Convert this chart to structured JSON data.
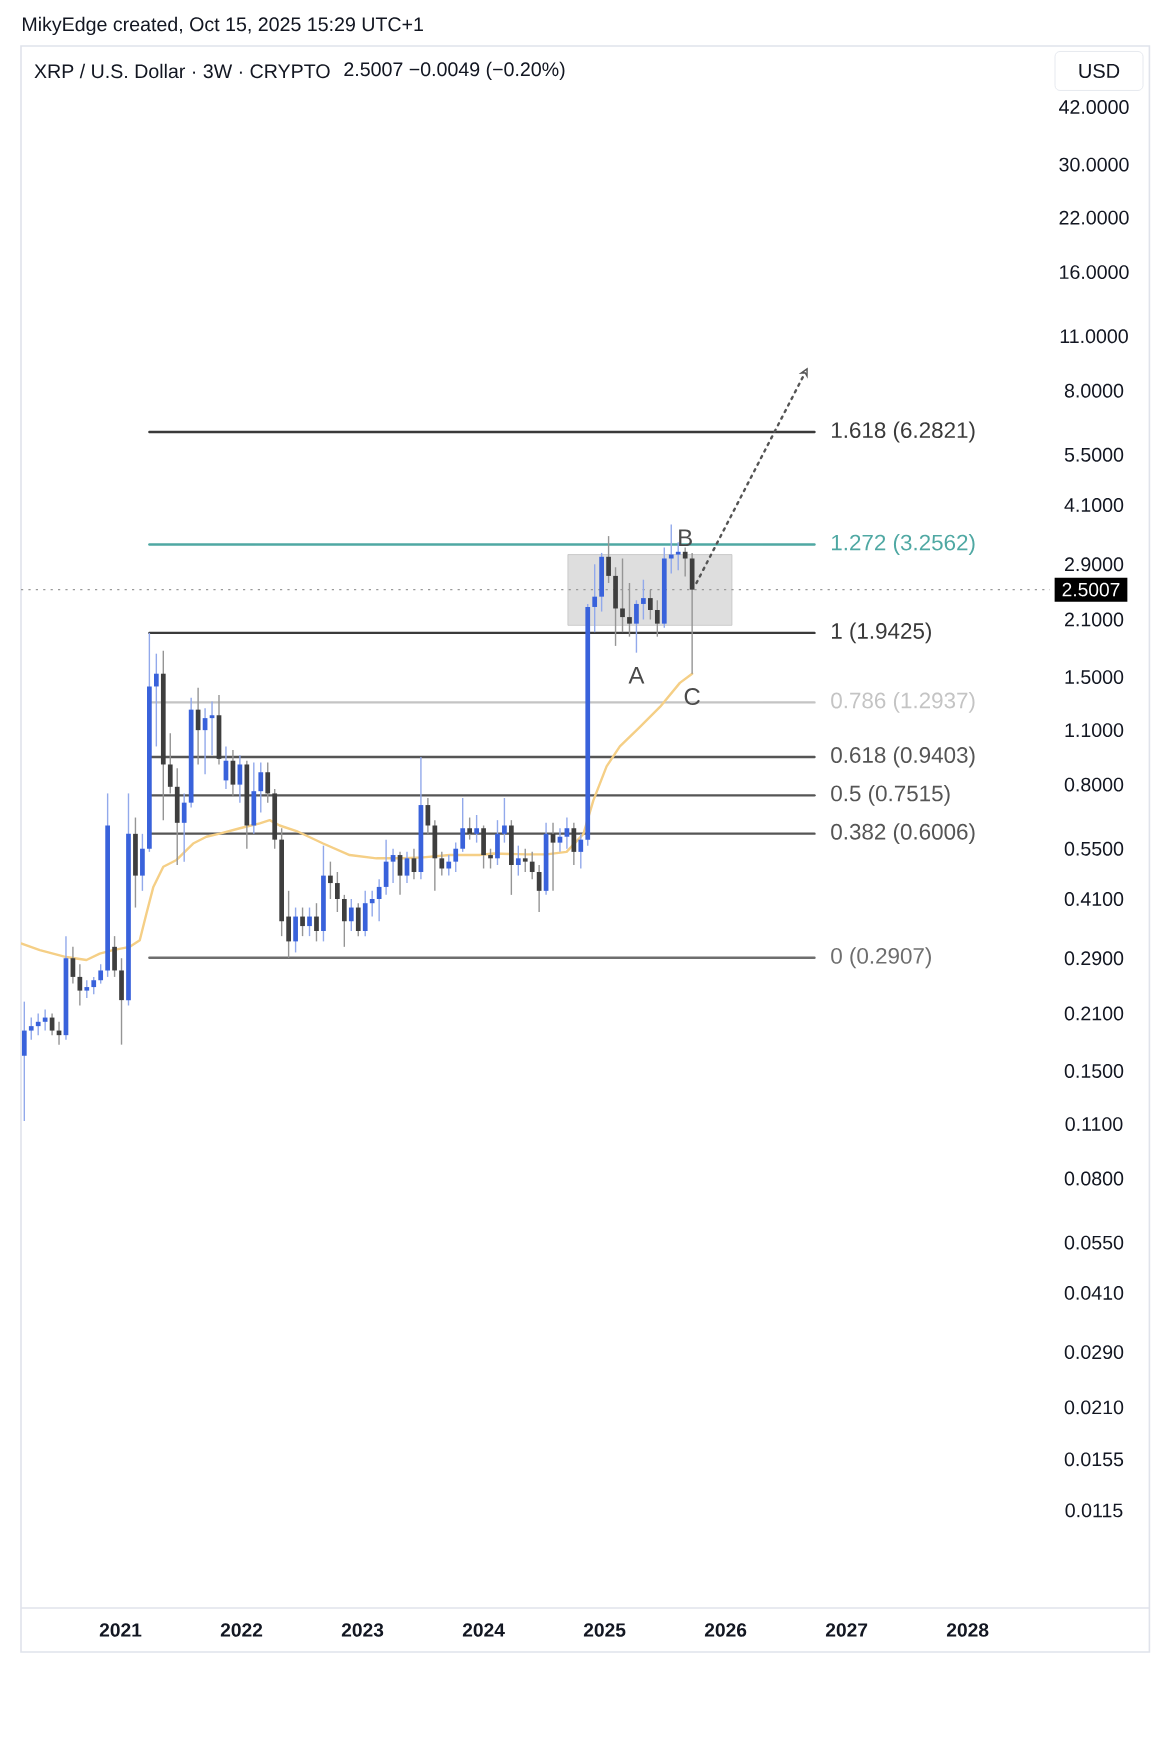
{
  "chart_data": {
    "type": "candlestick",
    "title": "XRP / U.S. Dollar · 3W · CRYPTO",
    "subtitle": "2.5007  −0.0049 (−0.20%)",
    "ylabel": "USD",
    "x": [
      "2020-03-16",
      "2020-04-06",
      "2020-04-27",
      "2020-05-18",
      "2020-06-08",
      "2020-06-29",
      "2020-07-20",
      "2020-08-10",
      "2020-08-31",
      "2020-09-21",
      "2020-10-12",
      "2020-11-02",
      "2020-11-23",
      "2020-12-14",
      "2021-01-04",
      "2021-01-25",
      "2021-02-15",
      "2021-03-08",
      "2021-03-29",
      "2021-04-19",
      "2021-05-10",
      "2021-05-31",
      "2021-06-21",
      "2021-07-12",
      "2021-08-02",
      "2021-08-23",
      "2021-09-13",
      "2021-10-04",
      "2021-10-25",
      "2021-11-15",
      "2021-12-06",
      "2021-12-27",
      "2022-01-17",
      "2022-02-07",
      "2022-02-28",
      "2022-03-21",
      "2022-04-11",
      "2022-05-02",
      "2022-05-23",
      "2022-06-13",
      "2022-07-04",
      "2022-07-25",
      "2022-08-15",
      "2022-09-05",
      "2022-09-26",
      "2022-10-17",
      "2022-11-07",
      "2022-11-28",
      "2022-12-19",
      "2023-01-09",
      "2023-01-30",
      "2023-02-20",
      "2023-03-13",
      "2023-04-03",
      "2023-04-24",
      "2023-05-15",
      "2023-06-05",
      "2023-06-26",
      "2023-07-17",
      "2023-08-07",
      "2023-08-28",
      "2023-09-18",
      "2023-10-09",
      "2023-10-30",
      "2023-11-20",
      "2023-12-11",
      "2024-01-01",
      "2024-01-22",
      "2024-02-12",
      "2024-03-04",
      "2024-03-25",
      "2024-04-15",
      "2024-05-06",
      "2024-05-27",
      "2024-06-17",
      "2024-07-08",
      "2024-07-29",
      "2024-08-19",
      "2024-09-09",
      "2024-09-30",
      "2024-10-21",
      "2024-11-11",
      "2024-12-02",
      "2024-12-23",
      "2025-01-13",
      "2025-02-03",
      "2025-02-24",
      "2025-03-17",
      "2025-04-07",
      "2025-04-28",
      "2025-05-19",
      "2025-06-09",
      "2025-06-30",
      "2025-07-21",
      "2025-08-11",
      "2025-09-01",
      "2025-09-22"
    ],
    "ohlc": [
      [
        0.164,
        0.225,
        0.112,
        0.19
      ],
      [
        0.19,
        0.205,
        0.18,
        0.195
      ],
      [
        0.195,
        0.21,
        0.185,
        0.2
      ],
      [
        0.2,
        0.215,
        0.19,
        0.205
      ],
      [
        0.205,
        0.21,
        0.185,
        0.19
      ],
      [
        0.19,
        0.2,
        0.175,
        0.185
      ],
      [
        0.185,
        0.33,
        0.18,
        0.29
      ],
      [
        0.29,
        0.31,
        0.25,
        0.26
      ],
      [
        0.26,
        0.28,
        0.22,
        0.24
      ],
      [
        0.24,
        0.255,
        0.23,
        0.245
      ],
      [
        0.245,
        0.26,
        0.235,
        0.255
      ],
      [
        0.255,
        0.28,
        0.25,
        0.27
      ],
      [
        0.27,
        0.76,
        0.26,
        0.63
      ],
      [
        0.31,
        0.33,
        0.26,
        0.27
      ],
      [
        0.27,
        0.29,
        0.175,
        0.227
      ],
      [
        0.227,
        0.76,
        0.22,
        0.6
      ],
      [
        0.6,
        0.66,
        0.39,
        0.47
      ],
      [
        0.47,
        0.6,
        0.43,
        0.55
      ],
      [
        0.55,
        1.9425,
        0.54,
        1.42
      ],
      [
        1.42,
        1.72,
        1.0,
        1.53
      ],
      [
        1.53,
        1.75,
        0.65,
        0.9
      ],
      [
        0.9,
        1.08,
        0.76,
        0.79
      ],
      [
        0.79,
        0.88,
        0.5,
        0.64
      ],
      [
        0.64,
        0.76,
        0.51,
        0.72
      ],
      [
        0.72,
        1.33,
        0.7,
        1.24
      ],
      [
        1.24,
        1.41,
        0.9,
        1.1
      ],
      [
        1.1,
        1.25,
        0.85,
        1.18
      ],
      [
        1.18,
        1.3,
        0.95,
        1.2
      ],
      [
        1.2,
        1.35,
        0.9,
        0.93
      ],
      [
        0.82,
        1.0,
        0.78,
        0.92
      ],
      [
        0.92,
        0.98,
        0.75,
        0.8
      ],
      [
        0.8,
        0.95,
        0.72,
        0.9
      ],
      [
        0.9,
        0.92,
        0.55,
        0.63
      ],
      [
        0.63,
        0.91,
        0.6,
        0.77
      ],
      [
        0.77,
        0.91,
        0.68,
        0.86
      ],
      [
        0.86,
        0.91,
        0.72,
        0.76
      ],
      [
        0.76,
        0.78,
        0.55,
        0.58
      ],
      [
        0.58,
        0.62,
        0.33,
        0.36
      ],
      [
        0.37,
        0.43,
        0.2907,
        0.32
      ],
      [
        0.32,
        0.39,
        0.3,
        0.37
      ],
      [
        0.37,
        0.39,
        0.33,
        0.35
      ],
      [
        0.35,
        0.39,
        0.33,
        0.37
      ],
      [
        0.37,
        0.4,
        0.32,
        0.34
      ],
      [
        0.34,
        0.56,
        0.32,
        0.47
      ],
      [
        0.47,
        0.51,
        0.41,
        0.45
      ],
      [
        0.45,
        0.48,
        0.38,
        0.41
      ],
      [
        0.41,
        0.42,
        0.31,
        0.36
      ],
      [
        0.36,
        0.41,
        0.34,
        0.39
      ],
      [
        0.39,
        0.4,
        0.33,
        0.34
      ],
      [
        0.34,
        0.43,
        0.33,
        0.4
      ],
      [
        0.4,
        0.43,
        0.37,
        0.41
      ],
      [
        0.41,
        0.46,
        0.36,
        0.44
      ],
      [
        0.44,
        0.58,
        0.42,
        0.51
      ],
      [
        0.51,
        0.55,
        0.45,
        0.53
      ],
      [
        0.53,
        0.54,
        0.42,
        0.47
      ],
      [
        0.47,
        0.54,
        0.45,
        0.52
      ],
      [
        0.52,
        0.55,
        0.46,
        0.48
      ],
      [
        0.48,
        0.94,
        0.46,
        0.71
      ],
      [
        0.71,
        0.74,
        0.6,
        0.63
      ],
      [
        0.63,
        0.65,
        0.43,
        0.52
      ],
      [
        0.52,
        0.54,
        0.47,
        0.49
      ],
      [
        0.49,
        0.53,
        0.47,
        0.51
      ],
      [
        0.51,
        0.57,
        0.48,
        0.55
      ],
      [
        0.55,
        0.74,
        0.54,
        0.62
      ],
      [
        0.62,
        0.66,
        0.58,
        0.6
      ],
      [
        0.6,
        0.67,
        0.57,
        0.62
      ],
      [
        0.62,
        0.63,
        0.49,
        0.53
      ],
      [
        0.53,
        0.55,
        0.49,
        0.52
      ],
      [
        0.52,
        0.65,
        0.5,
        0.6
      ],
      [
        0.6,
        0.74,
        0.57,
        0.63
      ],
      [
        0.63,
        0.65,
        0.42,
        0.5
      ],
      [
        0.5,
        0.56,
        0.47,
        0.52
      ],
      [
        0.52,
        0.55,
        0.48,
        0.51
      ],
      [
        0.51,
        0.54,
        0.46,
        0.48
      ],
      [
        0.48,
        0.5,
        0.38,
        0.43
      ],
      [
        0.43,
        0.64,
        0.42,
        0.6
      ],
      [
        0.6,
        0.64,
        0.43,
        0.57
      ],
      [
        0.57,
        0.62,
        0.54,
        0.59
      ],
      [
        0.59,
        0.66,
        0.55,
        0.62
      ],
      [
        0.62,
        0.64,
        0.5,
        0.54
      ],
      [
        0.54,
        0.6,
        0.49,
        0.58
      ],
      [
        0.58,
        2.3,
        0.56,
        2.26
      ],
      [
        2.26,
        2.9,
        1.95,
        2.4
      ],
      [
        2.4,
        3.1,
        2.2,
        3.03
      ],
      [
        3.03,
        3.42,
        2.6,
        2.71
      ],
      [
        2.71,
        2.85,
        1.8,
        2.24
      ],
      [
        2.24,
        3.0,
        1.95,
        2.13
      ],
      [
        2.13,
        2.6,
        1.9,
        2.05
      ],
      [
        2.05,
        2.35,
        1.73,
        2.3
      ],
      [
        2.3,
        2.65,
        2.1,
        2.38
      ],
      [
        2.38,
        2.5,
        2.1,
        2.22
      ],
      [
        2.22,
        2.35,
        1.9,
        2.05
      ],
      [
        2.05,
        3.2,
        2.0,
        3.0
      ],
      [
        3.0,
        3.66,
        2.75,
        3.07
      ],
      [
        3.07,
        3.3,
        2.8,
        3.12
      ],
      [
        3.12,
        3.2,
        2.7,
        3.0
      ],
      [
        3.0,
        3.1,
        1.53,
        2.5007
      ]
    ],
    "colors": [
      "#3962db",
      "#3962db",
      "#3962db",
      "#3962db",
      "#3e3e3e",
      "#3e3e3e",
      "#3962db",
      "#3e3e3e",
      "#3e3e3e",
      "#3962db",
      "#3962db",
      "#3962db",
      "#3962db",
      "#3e3e3e",
      "#3e3e3e",
      "#3962db",
      "#3e3e3e",
      "#3962db",
      "#3962db",
      "#3962db",
      "#3e3e3e",
      "#3e3e3e",
      "#3e3e3e",
      "#3962db",
      "#3962db",
      "#3e3e3e",
      "#3962db",
      "#3962db",
      "#3e3e3e",
      "#3962db",
      "#3e3e3e",
      "#3962db",
      "#3e3e3e",
      "#3962db",
      "#3962db",
      "#3e3e3e",
      "#3e3e3e",
      "#3e3e3e",
      "#3e3e3e",
      "#3962db",
      "#3e3e3e",
      "#3962db",
      "#3e3e3e",
      "#3962db",
      "#3e3e3e",
      "#3e3e3e",
      "#3e3e3e",
      "#3962db",
      "#3e3e3e",
      "#3962db",
      "#3962db",
      "#3962db",
      "#3962db",
      "#3962db",
      "#3e3e3e",
      "#3962db",
      "#3e3e3e",
      "#3962db",
      "#3e3e3e",
      "#3e3e3e",
      "#3e3e3e",
      "#3962db",
      "#3962db",
      "#3962db",
      "#3e3e3e",
      "#3962db",
      "#3e3e3e",
      "#3e3e3e",
      "#3962db",
      "#3962db",
      "#3e3e3e",
      "#3962db",
      "#3e3e3e",
      "#3e3e3e",
      "#3e3e3e",
      "#3962db",
      "#3e3e3e",
      "#3962db",
      "#3962db",
      "#3e3e3e",
      "#3962db",
      "#3962db",
      "#3962db",
      "#3962db",
      "#3e3e3e",
      "#3e3e3e",
      "#3e3e3e",
      "#3e3e3e",
      "#3962db",
      "#3962db",
      "#3e3e3e",
      "#3e3e3e",
      "#3962db",
      "#3962db",
      "#3962db",
      "#3e3e3e",
      "#3e3e3e"
    ],
    "series": [
      {
        "type": "line",
        "color": "#dedede",
        "x": [
          "2024-09-12",
          "2026-01-20"
        ],
        "values": [
          null,
          null
        ],
        "lower": [
          2.03,
          2.03
        ],
        "upper": [
          3.07,
          3.07
        ]
      },
      {
        "type": "line",
        "name": "1.618 (6.2821)",
        "color": "#3a3a3a",
        "x": [
          "2021-03-29",
          "2026-09-26"
        ],
        "values": [
          6.2821,
          6.2821
        ]
      },
      {
        "type": "line",
        "name": "1.272 (3.2562)",
        "color": "#4fa8a3",
        "x": [
          "2021-03-29",
          "2026-09-26"
        ],
        "values": [
          3.2562,
          3.2562
        ]
      },
      {
        "type": "line",
        "name": "1 (1.9425)",
        "color": "#3a3a3a",
        "x": [
          "2021-03-29",
          "2026-09-26"
        ],
        "values": [
          1.9425,
          1.9425
        ]
      },
      {
        "type": "line",
        "name": "0.786 (1.2937)",
        "color": "#c4c4c4",
        "x": [
          "2021-03-29",
          "2026-09-26"
        ],
        "values": [
          1.2937,
          1.2937
        ]
      },
      {
        "type": "line",
        "name": "0.618 (0.9403)",
        "color": "#555555",
        "x": [
          "2021-03-29",
          "2026-09-26"
        ],
        "values": [
          0.9403,
          0.9403
        ]
      },
      {
        "type": "line",
        "name": "0.5 (0.7515)",
        "color": "#555555",
        "x": [
          "2021-03-29",
          "2026-09-26"
        ],
        "values": [
          0.7515,
          0.7515
        ]
      },
      {
        "type": "line",
        "name": "0.382 (0.6006)",
        "color": "#555555",
        "x": [
          "2021-03-29",
          "2026-09-26"
        ],
        "values": [
          0.6006,
          0.6006
        ]
      },
      {
        "type": "line",
        "name": "0 (0.2907)",
        "color": "#6e6e6e",
        "x": [
          "2021-03-29",
          "2026-09-26"
        ],
        "values": [
          0.2907,
          0.2907
        ]
      },
      {
        "type": "line",
        "color": "#f5cf86",
        "x": [
          "2020-03-08",
          "2020-05-02",
          "2020-07-21",
          "2020-09-20",
          "2020-10-30",
          "2020-12-09",
          "2021-01-29",
          "2021-02-28",
          "2021-03-20",
          "2021-04-10",
          "2021-05-10",
          "2021-06-19",
          "2021-08-08",
          "2021-09-17",
          "2021-10-27",
          "2021-12-27",
          "2022-02-25",
          "2022-03-27",
          "2022-04-26",
          "2022-06-16",
          "2022-09-04",
          "2022-11-23",
          "2023-02-12",
          "2023-05-03",
          "2023-07-02",
          "2023-09-21",
          "2023-12-20",
          "2024-01-30",
          "2024-05-10",
          "2024-07-09",
          "2024-09-08",
          "2024-10-29",
          "2024-11-28",
          "2025-01-07",
          "2025-02-16",
          "2025-04-17",
          "2025-06-17",
          "2025-08-16",
          "2025-09-22"
        ],
        "values": [
          0.316,
          0.304,
          0.292,
          0.287,
          0.298,
          0.304,
          0.31,
          0.322,
          0.376,
          0.44,
          0.495,
          0.515,
          0.567,
          0.59,
          0.601,
          0.62,
          0.638,
          0.65,
          0.63,
          0.61,
          0.567,
          0.53,
          0.52,
          0.52,
          0.523,
          0.53,
          0.53,
          0.535,
          0.532,
          0.532,
          0.54,
          0.6,
          0.73,
          0.89,
          1.0,
          1.12,
          1.26,
          1.45,
          1.53
        ]
      },
      {
        "type": "line",
        "line_style": "dotted",
        "color": "#555555",
        "x": [
          "2025-10-05",
          "2026-08-23"
        ],
        "values": [
          2.6,
          8.7
        ]
      }
    ],
    "xlim": [
      "2020-03-06",
      "2028-09-06"
    ],
    "xticks": [
      "2021",
      "2022",
      "2023",
      "2024",
      "2025",
      "2026",
      "2027",
      "2028"
    ],
    "ylim": [
      0.0065,
      60
    ],
    "yticks": [
      {
        "value": 42,
        "label": "42.0000"
      },
      {
        "value": 30,
        "label": "30.0000"
      },
      {
        "value": 22,
        "label": "22.0000"
      },
      {
        "value": 16,
        "label": "16.0000"
      },
      {
        "value": 11,
        "label": "11.0000"
      },
      {
        "value": 8,
        "label": "8.0000"
      },
      {
        "value": 5.5,
        "label": "5.5000"
      },
      {
        "value": 4.1,
        "label": "4.1000"
      },
      {
        "value": 2.9,
        "label": "2.9000"
      },
      {
        "value": 2.1,
        "label": "2.1000"
      },
      {
        "value": 1.5,
        "label": "1.5000"
      },
      {
        "value": 1.1,
        "label": "1.1000"
      },
      {
        "value": 0.8,
        "label": "0.8000"
      },
      {
        "value": 0.55,
        "label": "0.5500"
      },
      {
        "value": 0.41,
        "label": "0.4100"
      },
      {
        "value": 0.29,
        "label": "0.2900"
      },
      {
        "value": 0.21,
        "label": "0.2100"
      },
      {
        "value": 0.15,
        "label": "0.1500"
      },
      {
        "value": 0.11,
        "label": "0.1100"
      },
      {
        "value": 0.08,
        "label": "0.0800"
      },
      {
        "value": 0.055,
        "label": "0.0550"
      },
      {
        "value": 0.041,
        "label": "0.0410"
      },
      {
        "value": 0.029,
        "label": "0.0290"
      },
      {
        "value": 0.021,
        "label": "0.0210"
      },
      {
        "value": 0.0155,
        "label": "0.0155"
      },
      {
        "value": 0.0115,
        "label": "0.0115"
      }
    ],
    "log": "y",
    "ref_lines": [
      {
        "axis": "y",
        "value": 2.5007,
        "label": "2.5007",
        "line_style": "dotted",
        "color": "#9a9a9a"
      }
    ],
    "annotations": [
      "MikyEdge created, Oct 15, 2025 15:29 UTC+1",
      {
        "text": "A",
        "x": "2025-04-07",
        "y": 1.73
      },
      {
        "text": "B",
        "x": "2025-09-01",
        "y": 3.2
      },
      {
        "text": "C",
        "x": "2025-09-22",
        "y": 1.53
      }
    ]
  }
}
